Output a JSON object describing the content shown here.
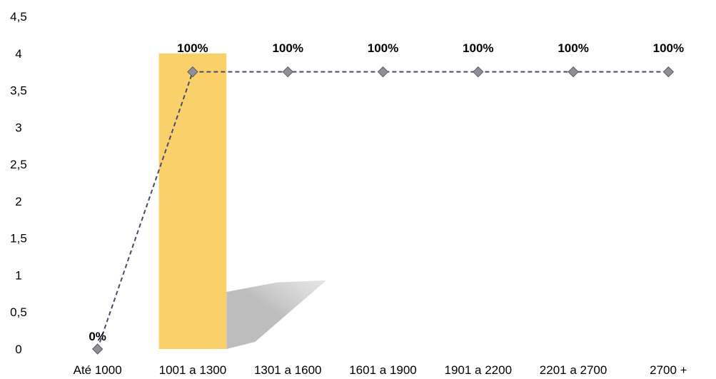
{
  "chart_data": {
    "type": "bar+line",
    "categories": [
      "Até 1000",
      "1001 a 1300",
      "1301 a 1600",
      "1601 a 1900",
      "1901 a 2200",
      "2201 a 2700",
      "2700 +"
    ],
    "bar": {
      "values": [
        0,
        4,
        0,
        0,
        0,
        0,
        0
      ],
      "color": "#FAD06A"
    },
    "line": {
      "values": [
        0,
        3.75,
        3.75,
        3.75,
        3.75,
        3.75,
        3.75
      ],
      "data_labels": [
        "0%",
        "100%",
        "100%",
        "100%",
        "100%",
        "100%",
        "100%"
      ],
      "color": "#4a4a6e",
      "marker_color": "#8e8e96",
      "style": "dashed",
      "marker": "diamond"
    },
    "y_ticks": [
      "0",
      "0,5",
      "1",
      "1,5",
      "2",
      "2,5",
      "3",
      "3,5",
      "4",
      "4,5"
    ],
    "ylim": [
      0,
      4.5
    ],
    "grid": false,
    "legend": "none"
  }
}
